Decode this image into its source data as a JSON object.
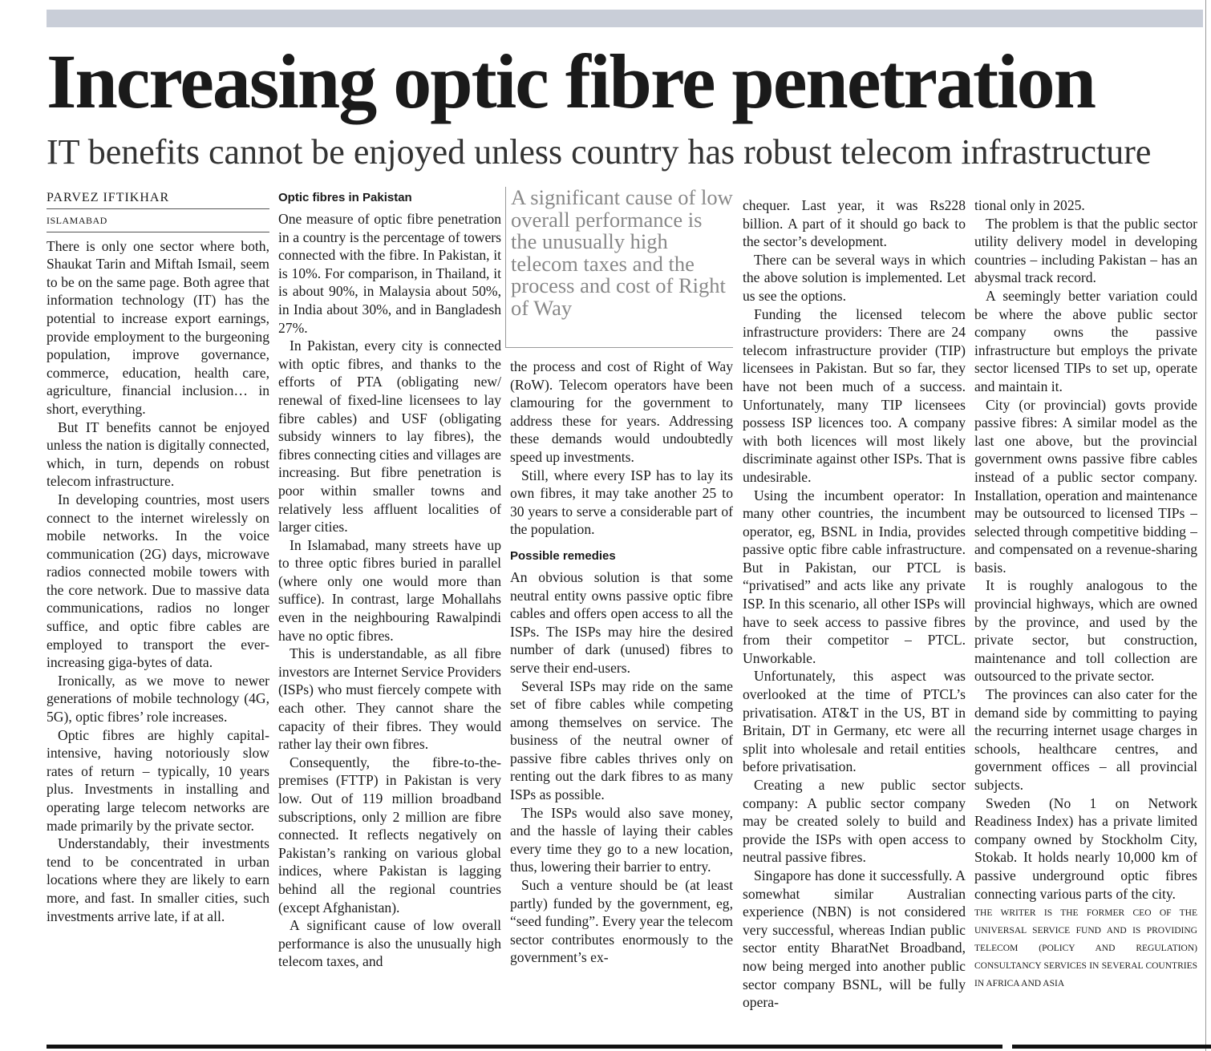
{
  "header": {
    "headline": "Increasing optic fibre penetration",
    "subheadline": "IT benefits cannot be enjoyed unless country has robust telecom infrastructure"
  },
  "columns": [
    {
      "byline": "PARVEZ IFTIKHAR",
      "location": "ISLAMABAD",
      "paragraphs": [
        "There is only one sector where both, Shaukat Tarin and Miftah Ismail, seem to be on the same page. Both agree that information technology (IT) has the potential to increase export earnings, provide employment to the burgeoning population, improve governance, commerce, education, health care, agriculture, financial inclusion… in short, everything.",
        "But IT benefits cannot be enjoyed unless the nation is digitally connected, which, in turn, depends on robust telecom infrastructure.",
        "In developing countries, most users connect to the internet wirelessly on mobile networks. In the voice communication (2G) days, microwave radios connected mobile towers with the core network. Due to massive data communications, radios no longer suffice, and optic fibre cables are employed to transport the ever-increasing giga-bytes of data.",
        "Ironically, as we move to newer generations of mobile technology (4G, 5G), optic fibres’ role increases.",
        "Optic fibres are highly capital-intensive, having notoriously slow rates of return – typically, 10 years plus. Investments in installing and operating large telecom networks are made primarily by the private sector.",
        "Understandably, their investments tend to be concentrated in urban locations where they are likely to earn more, and fast. In smaller cities, such investments arrive late, if at all."
      ]
    },
    {
      "heading": "Optic fibres in Pakistan",
      "paragraphs": [
        "One measure of optic fibre penetration in a country is the percentage of towers connected with the fibre. In Pakistan, it is 10%. For comparison, in Thailand, it is about 90%, in Malaysia about 50%, in India about 30%, and in Bangladesh 27%.",
        "In Pakistan, every city is connected with optic fibres, and thanks to the efforts of PTA (obligating new/ renewal of fixed-line licensees to lay fibre cables) and USF (obligating subsidy winners to lay fibres), the fibres connecting cities and villages are increasing. But fibre penetration is poor within smaller towns and relatively less affluent localities of larger cities.",
        "In Islamabad, many streets have up to three optic fibres buried in parallel (where only one would more than suffice). In contrast, large Mohallahs even in the neighbouring Rawalpindi have no optic fibres.",
        "This is understandable, as all fibre investors are Internet Service Providers (ISPs) who must fiercely compete with each other. They cannot share the capacity of their fibres. They would rather lay their own fibres.",
        "Consequently, the fibre-to-the-premises (FTTP) in Pakistan is very low. Out of 119 million broadband subscriptions, only 2 million are fibre connected. It reflects negatively on Pakistan’s ranking on various global indices, where Pakistan is lagging behind all the regional countries (except Afghanistan).",
        "A significant cause of low overall performance is also the unusually high telecom taxes, and"
      ]
    },
    {
      "pull_quote": "A significant cause of low overall performance is the unusually high telecom taxes and the process and cost of Right of Way",
      "paragraphs": [
        "the process and cost of Right of Way (RoW). Telecom operators have been clamouring for the government to address these for years. Addressing these demands would undoubtedly speed up investments.",
        "Still, where every ISP has to lay its own fibres, it may take another 25 to 30 years to serve a considerable part of the population."
      ],
      "heading": "Possible remedies",
      "paragraphs_after": [
        "An obvious solution is that some neutral entity owns passive optic fibre cables and offers open access to all the ISPs. The ISPs may hire the desired number of dark (unused) fibres to serve their end-users.",
        "Several ISPs may ride on the same set of fibre cables while competing among themselves on service. The business of the neutral owner of passive fibre cables thrives only on renting out the dark fibres to as many ISPs as possible.",
        "The ISPs would also save money, and the hassle of laying their cables every time they go to a new location, thus, lowering their barrier to entry.",
        "Such a venture should be (at least partly) funded by the government, eg, “seed funding”. Every year the telecom sector contributes enormously to the government’s ex-"
      ]
    },
    {
      "paragraphs": [
        "chequer. Last year, it was Rs228 billion. A part of it should go back to the sector’s development.",
        "There can be several ways in which the above solution is implemented. Let us see the options.",
        "Funding the licensed telecom infrastructure providers: There are 24 telecom infrastructure provider (TIP) licensees in Pakistan. But so far, they have not been much of a success. Unfortunately, many TIP licensees possess ISP licences too. A company with both licences will most likely discriminate against other ISPs. That is undesirable.",
        "Using the incumbent operator: In many other countries, the incumbent operator, eg, BSNL in India, provides passive optic fibre cable infrastructure. But in Pakistan, our PTCL is “privatised” and acts like any private ISP. In this scenario, all other ISPs will have to seek access to passive fibres from their competitor – PTCL. Unworkable.",
        "Unfortunately, this aspect was overlooked at the time of PTCL’s privatisation. AT&T in the US, BT in Britain, DT in Germany, etc were all split into wholesale and retail entities before privatisation.",
        "Creating a new public sector company: A public sector company may be created solely to build and provide the ISPs with open access to neutral passive fibres.",
        "Singapore has done it successfully. A somewhat similar Australian experience (NBN) is not considered very successful, whereas Indian public sector entity BharatNet Broadband, now being merged into another public sector company BSNL, will be fully opera-"
      ]
    },
    {
      "paragraphs": [
        "tional only in 2025.",
        "The problem is that the public sector utility delivery model in developing countries – including Pakistan – has an abysmal track record.",
        "A seemingly better variation could be where the above public sector company owns the passive infrastructure but employs the private sector licensed TIPs to set up, operate and maintain it.",
        "City (or provincial) govts provide passive fibres: A similar model as the last one above, but the provincial government owns passive fibre cables instead of a public sector company. Installation, operation and maintenance may be outsourced to licensed TIPs – selected through competitive bidding – and compensated on a revenue-sharing basis.",
        "It is roughly analogous to the provincial highways, which are owned by the province, and used by the private sector, but construction, maintenance and toll collection are outsourced to the private sector.",
        "The provinces can also cater for the demand side by committing to paying the recurring internet usage charges in schools, healthcare centres, and government offices – all provincial subjects.",
        "Sweden (No 1 on Network Readiness Index) has a private limited company owned by Stockholm City, Stokab. It holds nearly 10,000 km of passive underground optic fibres connecting various parts of the city."
      ],
      "writer_note": "THE WRITER IS THE FORMER CEO OF THE UNIVERSAL SERVICE FUND AND IS PROVIDING TELECOM (POLICY AND REGULATION) CONSULTANCY SERVICES IN SEVERAL COUNTRIES IN AFRICA AND ASIA"
    }
  ]
}
